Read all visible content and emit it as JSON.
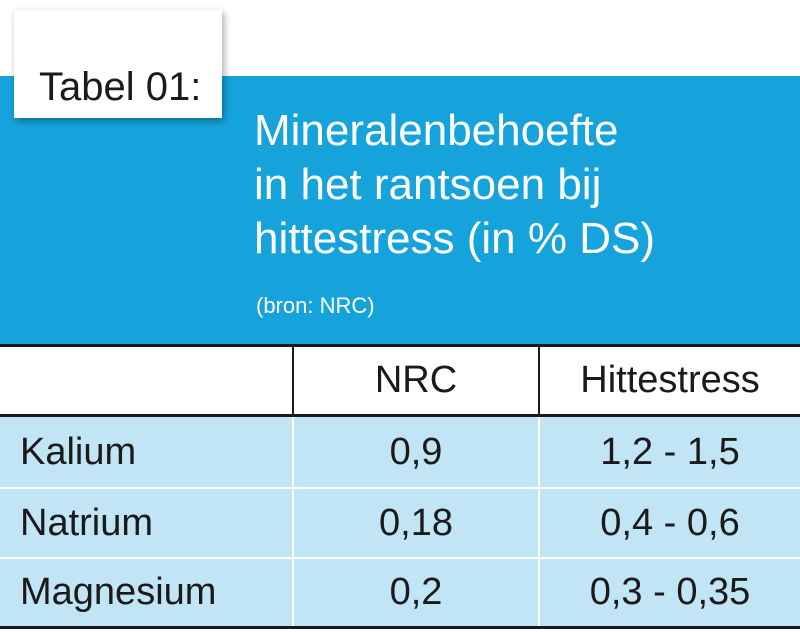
{
  "table_tag": "Tabel 01:",
  "title": {
    "line1": "Mineralenbehoefte",
    "line2": "in het rantsoen bij",
    "line3": "hittestress (in % DS)"
  },
  "source": "(bron: NRC)",
  "colors": {
    "header_band": "#16a3dc",
    "row_fill": "#c2e5f6",
    "rule": "#1a1a1a"
  },
  "table": {
    "columns": [
      "",
      "NRC",
      "Hittestress"
    ],
    "rows": [
      {
        "mineral": "Kalium",
        "nrc": "0,9",
        "hittestress": "1,2 - 1,5"
      },
      {
        "mineral": "Natrium",
        "nrc": "0,18",
        "hittestress": "0,4 - 0,6"
      },
      {
        "mineral": "Magnesium",
        "nrc": "0,2",
        "hittestress": "0,3 - 0,35"
      }
    ]
  }
}
